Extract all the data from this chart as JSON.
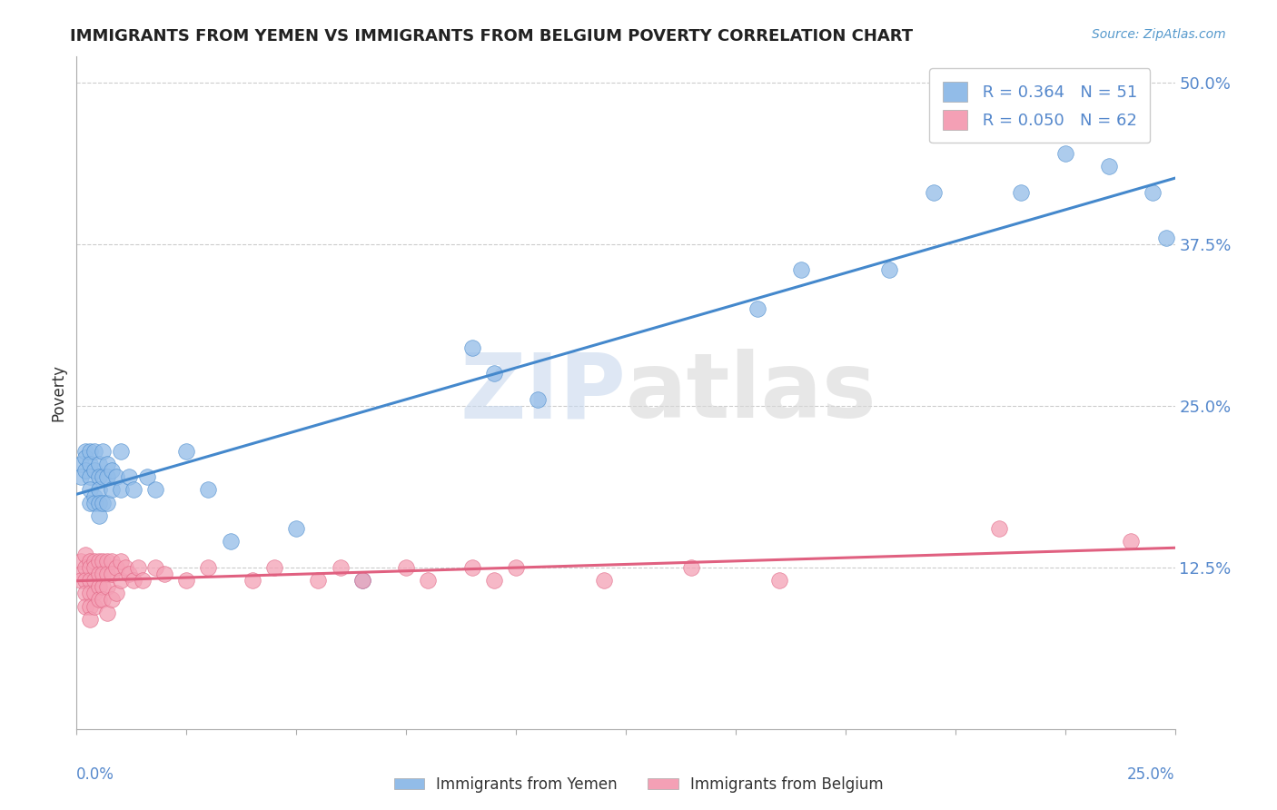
{
  "title": "IMMIGRANTS FROM YEMEN VS IMMIGRANTS FROM BELGIUM POVERTY CORRELATION CHART",
  "source": "Source: ZipAtlas.com",
  "ylabel_ticks": [
    0.125,
    0.25,
    0.375,
    0.5
  ],
  "ylabel_labels": [
    "12.5%",
    "25.0%",
    "37.5%",
    "50.0%"
  ],
  "xlim": [
    0.0,
    0.25
  ],
  "ylim": [
    0.0,
    0.52
  ],
  "legend_label_1": "Immigrants from Yemen",
  "legend_label_2": "Immigrants from Belgium",
  "R1": 0.364,
  "N1": 51,
  "R2": 0.05,
  "N2": 62,
  "color_yemen": "#92bce8",
  "color_belgium": "#f4a0b5",
  "color_yemen_line": "#4488cc",
  "color_belgium_line": "#e06080",
  "watermark_zip": "ZIP",
  "watermark_atlas": "atlas",
  "yemen_x": [
    0.001,
    0.001,
    0.002,
    0.002,
    0.002,
    0.003,
    0.003,
    0.003,
    0.003,
    0.003,
    0.004,
    0.004,
    0.004,
    0.004,
    0.005,
    0.005,
    0.005,
    0.005,
    0.005,
    0.006,
    0.006,
    0.006,
    0.007,
    0.007,
    0.007,
    0.008,
    0.008,
    0.009,
    0.01,
    0.01,
    0.012,
    0.013,
    0.016,
    0.018,
    0.025,
    0.03,
    0.035,
    0.05,
    0.065,
    0.09,
    0.095,
    0.105,
    0.155,
    0.165,
    0.185,
    0.195,
    0.215,
    0.225,
    0.235,
    0.245,
    0.248
  ],
  "yemen_y": [
    0.205,
    0.195,
    0.215,
    0.21,
    0.2,
    0.215,
    0.205,
    0.195,
    0.185,
    0.175,
    0.215,
    0.2,
    0.18,
    0.175,
    0.205,
    0.195,
    0.185,
    0.175,
    0.165,
    0.215,
    0.195,
    0.175,
    0.205,
    0.195,
    0.175,
    0.2,
    0.185,
    0.195,
    0.215,
    0.185,
    0.195,
    0.185,
    0.195,
    0.185,
    0.215,
    0.185,
    0.145,
    0.155,
    0.115,
    0.295,
    0.275,
    0.255,
    0.325,
    0.355,
    0.355,
    0.415,
    0.415,
    0.445,
    0.435,
    0.415,
    0.38
  ],
  "belgium_x": [
    0.001,
    0.001,
    0.001,
    0.002,
    0.002,
    0.002,
    0.002,
    0.002,
    0.003,
    0.003,
    0.003,
    0.003,
    0.003,
    0.003,
    0.004,
    0.004,
    0.004,
    0.004,
    0.004,
    0.005,
    0.005,
    0.005,
    0.005,
    0.006,
    0.006,
    0.006,
    0.006,
    0.007,
    0.007,
    0.007,
    0.007,
    0.008,
    0.008,
    0.008,
    0.009,
    0.009,
    0.01,
    0.01,
    0.011,
    0.012,
    0.013,
    0.014,
    0.015,
    0.018,
    0.02,
    0.025,
    0.03,
    0.04,
    0.045,
    0.055,
    0.06,
    0.065,
    0.075,
    0.08,
    0.09,
    0.095,
    0.1,
    0.12,
    0.14,
    0.16,
    0.21,
    0.24
  ],
  "belgium_y": [
    0.13,
    0.12,
    0.115,
    0.135,
    0.125,
    0.115,
    0.105,
    0.095,
    0.13,
    0.125,
    0.115,
    0.105,
    0.095,
    0.085,
    0.13,
    0.125,
    0.115,
    0.105,
    0.095,
    0.13,
    0.12,
    0.11,
    0.1,
    0.13,
    0.12,
    0.11,
    0.1,
    0.13,
    0.12,
    0.11,
    0.09,
    0.13,
    0.12,
    0.1,
    0.125,
    0.105,
    0.13,
    0.115,
    0.125,
    0.12,
    0.115,
    0.125,
    0.115,
    0.125,
    0.12,
    0.115,
    0.125,
    0.115,
    0.125,
    0.115,
    0.125,
    0.115,
    0.125,
    0.115,
    0.125,
    0.115,
    0.125,
    0.115,
    0.125,
    0.115,
    0.155,
    0.145
  ]
}
